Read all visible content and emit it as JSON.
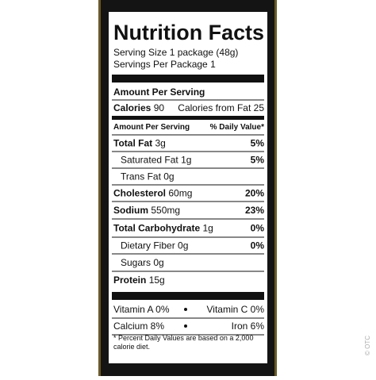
{
  "label": {
    "title": "Nutrition Facts",
    "serving_size": "Serving Size 1 package (48g)",
    "servings_per": "Servings Per Package 1",
    "amount_per_serving": "Amount Per Serving",
    "calories": {
      "name": "Calories",
      "amount": "90"
    },
    "calories_from_fat": "Calories from Fat 25",
    "subheader": {
      "left": "Amount Per Serving",
      "right": "% Daily Value*"
    },
    "rows": [
      {
        "name": "Total Fat",
        "amount": "3g",
        "dv": "5%",
        "bold": true,
        "indent": false
      },
      {
        "name": "Saturated Fat",
        "amount": "1g",
        "dv": "5%",
        "bold": false,
        "indent": true
      },
      {
        "name": "Trans Fat",
        "amount": "0g",
        "bold": false,
        "indent": true
      },
      {
        "name": "Cholesterol",
        "amount": "60mg",
        "dv": "20%",
        "bold": true,
        "indent": false
      },
      {
        "name": "Sodium",
        "amount": "550mg",
        "dv": "23%",
        "bold": true,
        "indent": false
      },
      {
        "name": "Total Carbohydrate",
        "amount": "1g",
        "dv": "0%",
        "bold": true,
        "indent": false
      },
      {
        "name": "Dietary Fiber",
        "amount": "0g",
        "dv": "0%",
        "bold": false,
        "indent": true
      },
      {
        "name": "Sugars",
        "amount": "0g",
        "bold": false,
        "indent": true
      },
      {
        "name": "Protein",
        "amount": "15g",
        "bold": true,
        "indent": false
      }
    ],
    "vitamins": [
      [
        "Vitamin A 0%",
        "Vitamin C 0%"
      ],
      [
        "Calcium 8%",
        "Iron 6%"
      ]
    ],
    "footnote": [
      "* Percent Daily Values are based on a 2,000",
      "calorie diet."
    ],
    "watermark": "© OTC"
  }
}
